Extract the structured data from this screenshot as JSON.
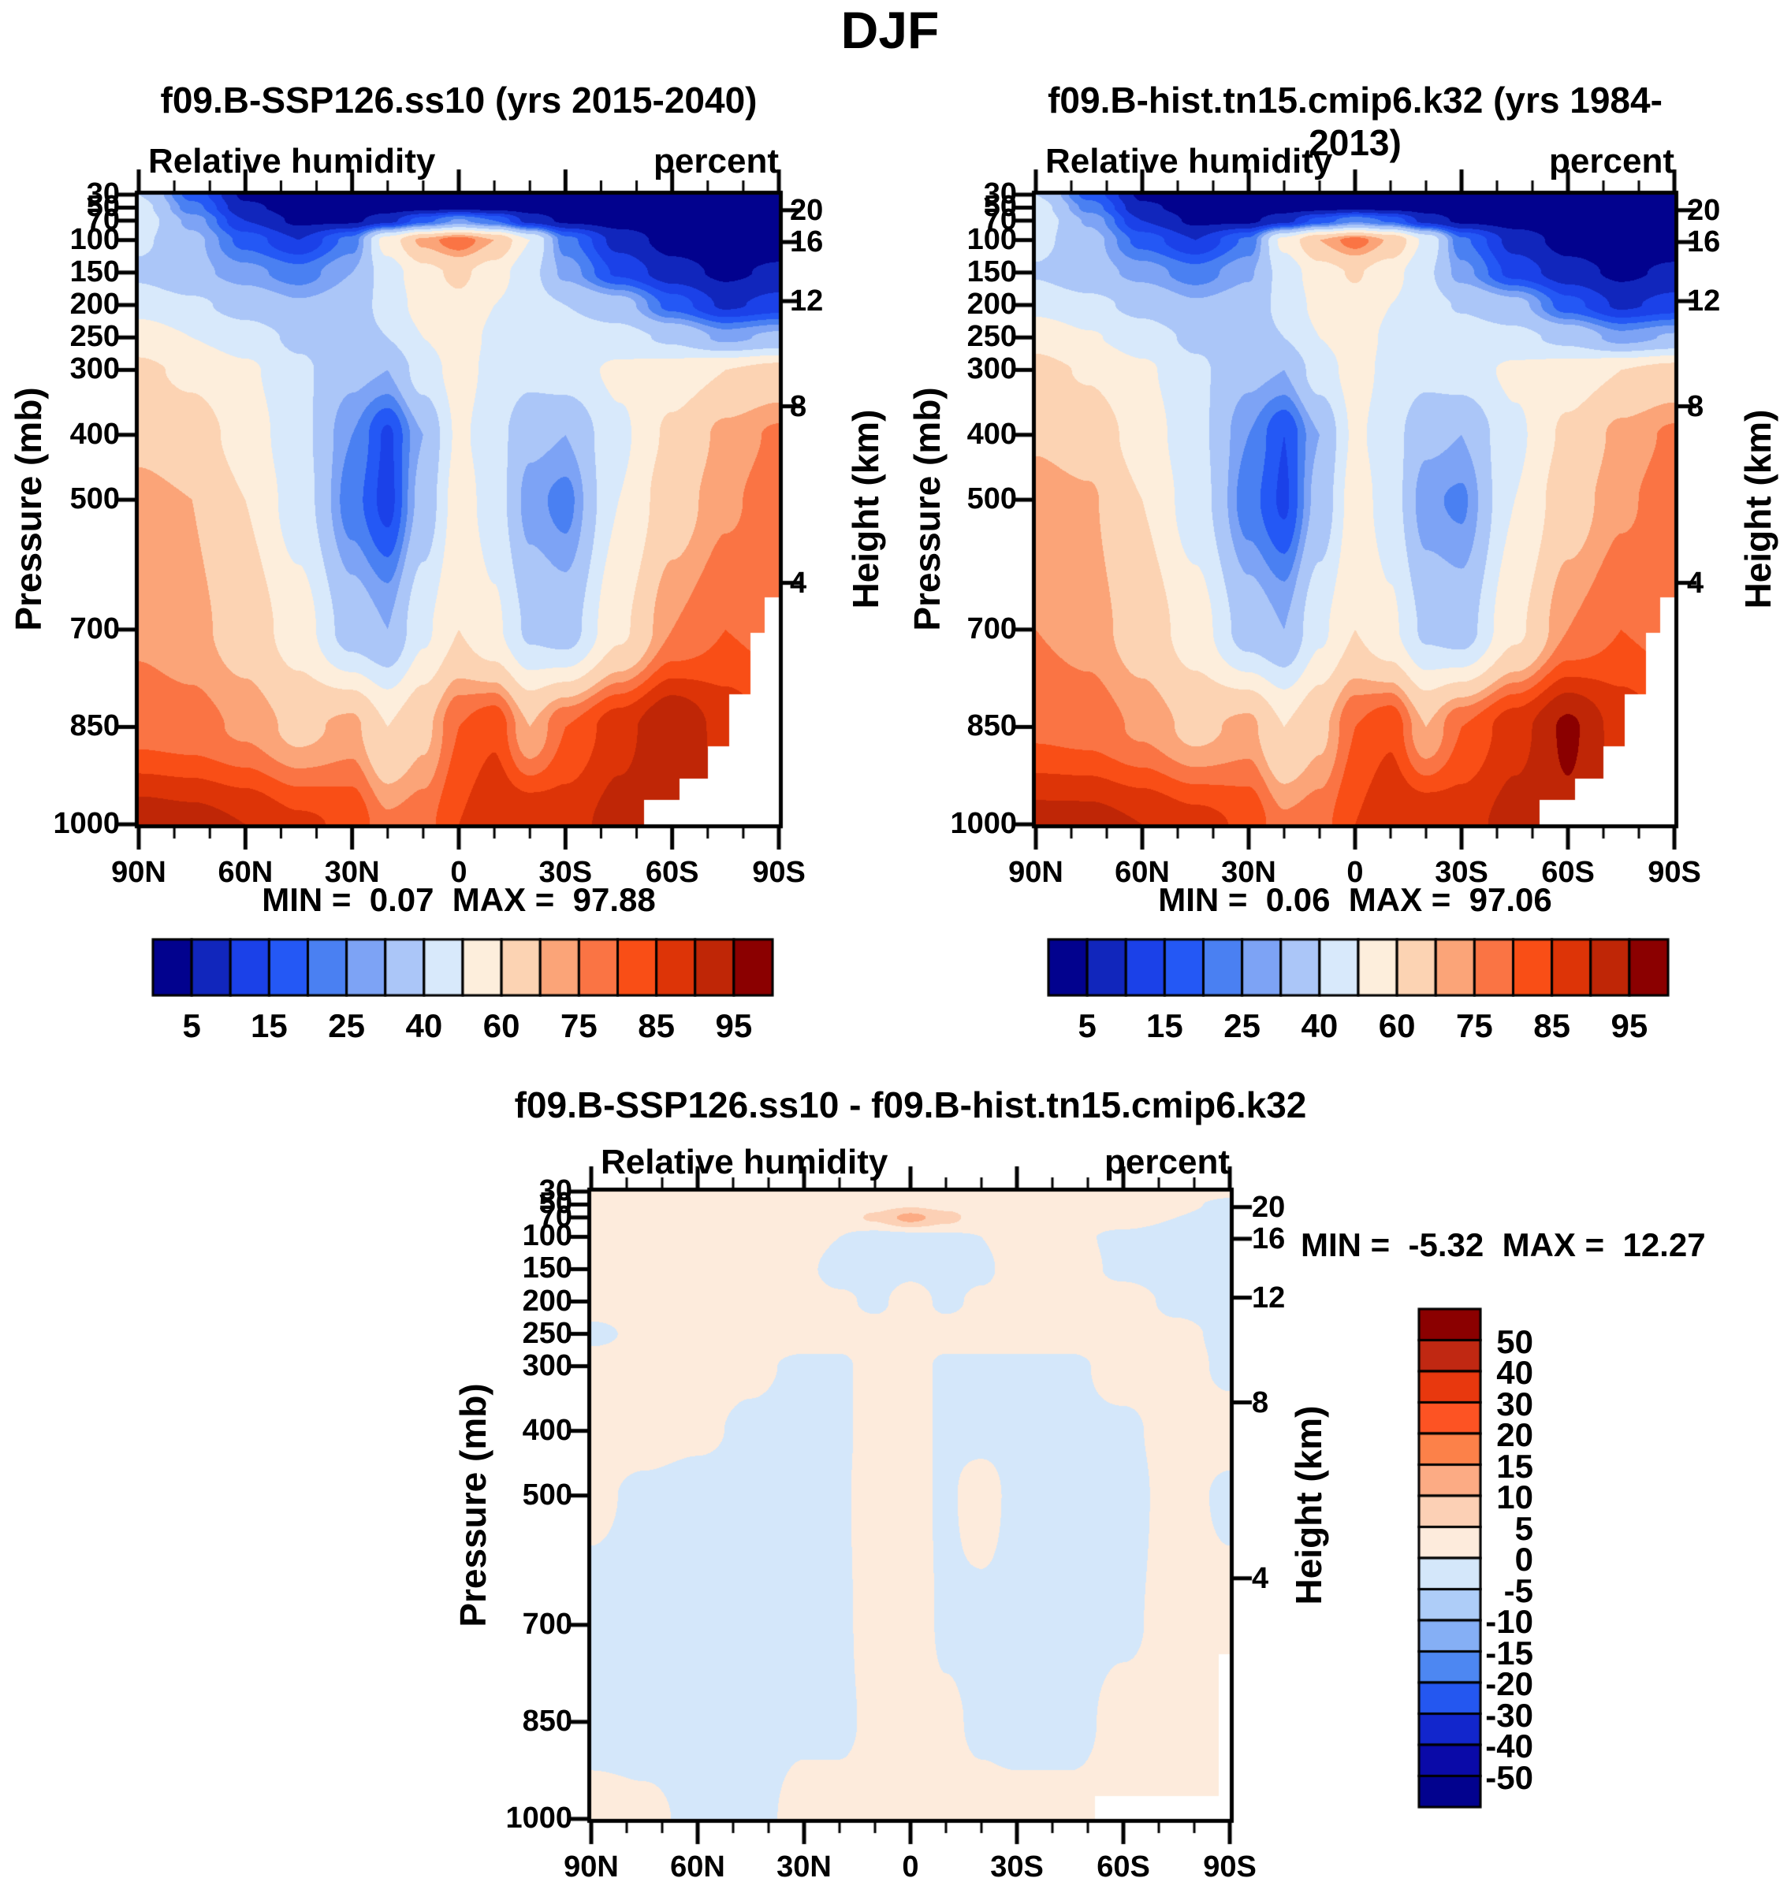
{
  "figure_title": "DJF",
  "chart_data": [
    {
      "id": "ssp126",
      "type": "heatmap",
      "title": "f09.B-SSP126.ss10 (yrs 2015-2040)",
      "field_label": "Relative humidity",
      "units_label": "percent",
      "stats_text": "MIN =  0.07  MAX =  97.88",
      "ylabel_left": "Pressure (mb)",
      "ylabel_right": "Height (km)",
      "pressure_ticks_mb": [
        30,
        50,
        70,
        100,
        150,
        200,
        250,
        300,
        400,
        500,
        700,
        850,
        1000
      ],
      "height_ticks": [
        {
          "label": "20",
          "p_mb": 54
        },
        {
          "label": "16",
          "p_mb": 103
        },
        {
          "label": "12",
          "p_mb": 194
        },
        {
          "label": "8",
          "p_mb": 356
        },
        {
          "label": "4",
          "p_mb": 628
        }
      ],
      "lat_major": [
        {
          "label": "90N",
          "deg": 90
        },
        {
          "label": "60N",
          "deg": 60
        },
        {
          "label": "30N",
          "deg": 30
        },
        {
          "label": "0",
          "deg": 0
        },
        {
          "label": "30S",
          "deg": -30
        },
        {
          "label": "60S",
          "deg": -60
        },
        {
          "label": "90S",
          "deg": -90
        }
      ],
      "lat_minor_step_deg": 10,
      "levels_percent": [
        5,
        10,
        15,
        20,
        25,
        30,
        40,
        50,
        60,
        70,
        75,
        80,
        85,
        90,
        95
      ],
      "colorbar_labels": [
        "5",
        "15",
        "25",
        "40",
        "60",
        "75",
        "85",
        "95"
      ],
      "colors": [
        "#02028e",
        "#1126bc",
        "#1b41e8",
        "#2458f5",
        "#4a80f2",
        "#7da3f5",
        "#abc6f8",
        "#d8e9fb",
        "#fdeedc",
        "#fcd3b3",
        "#fba478",
        "#fa7444",
        "#f94e16",
        "#dd3407",
        "#bf2606",
        "#8b0000"
      ],
      "lat_deg": [
        90,
        75,
        60,
        45,
        30,
        20,
        10,
        0,
        -10,
        -20,
        -30,
        -45,
        -60,
        -75,
        -90
      ],
      "pressure_mb": [
        30,
        50,
        70,
        100,
        150,
        200,
        250,
        300,
        400,
        500,
        700,
        850,
        1000
      ],
      "values": [
        [
          40,
          18,
          4,
          2,
          2,
          2,
          2,
          2,
          2,
          2,
          2,
          2,
          2,
          2,
          2
        ],
        [
          44,
          22,
          6,
          3,
          2,
          3,
          3,
          4,
          3,
          3,
          2,
          2,
          2,
          2,
          2
        ],
        [
          46,
          28,
          10,
          4,
          4,
          8,
          18,
          26,
          20,
          8,
          4,
          3,
          2,
          2,
          2
        ],
        [
          42,
          32,
          18,
          10,
          22,
          55,
          72,
          79,
          70,
          50,
          22,
          8,
          3,
          2,
          2
        ],
        [
          38,
          32,
          27,
          22,
          30,
          45,
          57,
          62,
          55,
          43,
          28,
          14,
          7,
          4,
          6
        ],
        [
          46,
          42,
          36,
          31,
          34,
          44,
          54,
          58,
          50,
          44,
          40,
          34,
          18,
          9,
          12
        ],
        [
          56,
          50,
          45,
          38,
          35,
          40,
          50,
          55,
          48,
          44,
          45,
          44,
          38,
          28,
          32
        ],
        [
          62,
          58,
          52,
          42,
          32,
          30,
          45,
          54,
          47,
          43,
          45,
          52,
          55,
          60,
          64
        ],
        [
          68,
          65,
          56,
          43,
          25,
          14,
          30,
          52,
          44,
          32,
          30,
          48,
          62,
          72,
          76
        ],
        [
          72,
          70,
          60,
          45,
          22,
          13,
          33,
          55,
          45,
          27,
          23,
          50,
          66,
          74,
          78
        ],
        [
          74,
          72,
          66,
          55,
          35,
          30,
          48,
          60,
          52,
          38,
          35,
          58,
          75,
          80,
          78
        ],
        [
          78,
          77,
          74,
          68,
          72,
          60,
          68,
          80,
          84,
          70,
          80,
          88,
          95,
          88,
          84
        ],
        [
          93,
          92,
          90,
          86,
          84,
          76,
          78,
          85,
          90,
          90,
          88,
          92,
          94,
          90,
          86
        ]
      ],
      "surface_mask": [
        {
          "lat_from": -52,
          "lat_to": -62,
          "p_mb": 962
        },
        {
          "lat_from": -62,
          "lat_to": -70,
          "p_mb": 930
        },
        {
          "lat_from": -70,
          "lat_to": -76,
          "p_mb": 880
        },
        {
          "lat_from": -76,
          "lat_to": -82,
          "p_mb": 800
        },
        {
          "lat_from": -82,
          "lat_to": -86,
          "p_mb": 705
        },
        {
          "lat_from": -86,
          "lat_to": -90,
          "p_mb": 650
        }
      ]
    },
    {
      "id": "hist",
      "type": "heatmap",
      "title": "f09.B-hist.tn15.cmip6.k32 (yrs 1984-2013)",
      "field_label": "Relative humidity",
      "units_label": "percent",
      "stats_text": "MIN =  0.06  MAX =  97.06",
      "ylabel_left": "Pressure (mb)",
      "ylabel_right": "Height (km)",
      "pressure_ticks_mb": [
        30,
        50,
        70,
        100,
        150,
        200,
        250,
        300,
        400,
        500,
        700,
        850,
        1000
      ],
      "height_ticks": [
        {
          "label": "20",
          "p_mb": 54
        },
        {
          "label": "16",
          "p_mb": 103
        },
        {
          "label": "12",
          "p_mb": 194
        },
        {
          "label": "8",
          "p_mb": 356
        },
        {
          "label": "4",
          "p_mb": 628
        }
      ],
      "lat_major": [
        {
          "label": "90N",
          "deg": 90
        },
        {
          "label": "60N",
          "deg": 60
        },
        {
          "label": "30N",
          "deg": 30
        },
        {
          "label": "0",
          "deg": 0
        },
        {
          "label": "30S",
          "deg": -30
        },
        {
          "label": "60S",
          "deg": -60
        },
        {
          "label": "90S",
          "deg": -90
        }
      ],
      "lat_minor_step_deg": 10,
      "levels_percent": [
        5,
        10,
        15,
        20,
        25,
        30,
        40,
        50,
        60,
        70,
        75,
        80,
        85,
        90,
        95
      ],
      "colorbar_labels": [
        "5",
        "15",
        "25",
        "40",
        "60",
        "75",
        "85",
        "95"
      ],
      "colors": [
        "#02028e",
        "#1126bc",
        "#1b41e8",
        "#2458f5",
        "#4a80f2",
        "#7da3f5",
        "#abc6f8",
        "#d8e9fb",
        "#fdeedc",
        "#fcd3b3",
        "#fba478",
        "#fa7444",
        "#f94e16",
        "#dd3407",
        "#bf2606",
        "#8b0000"
      ],
      "lat_deg": [
        90,
        75,
        60,
        45,
        30,
        20,
        10,
        0,
        -10,
        -20,
        -30,
        -45,
        -60,
        -75,
        -90
      ],
      "pressure_mb": [
        30,
        50,
        70,
        100,
        150,
        200,
        250,
        300,
        400,
        500,
        700,
        850,
        1000
      ],
      "values": [
        [
          40,
          18,
          4,
          2,
          2,
          2,
          2,
          2,
          2,
          2,
          2,
          2,
          2,
          2,
          2
        ],
        [
          45,
          23,
          6,
          3,
          2,
          3,
          3,
          4,
          3,
          3,
          2,
          2,
          2,
          2,
          2
        ],
        [
          47,
          29,
          10,
          4,
          4,
          8,
          17,
          24,
          19,
          8,
          4,
          3,
          2,
          2,
          2
        ],
        [
          43,
          33,
          18,
          10,
          21,
          53,
          70,
          78,
          69,
          48,
          21,
          8,
          3,
          2,
          2
        ],
        [
          39,
          33,
          28,
          22,
          29,
          44,
          56,
          61,
          54,
          42,
          27,
          13,
          7,
          4,
          6
        ],
        [
          47,
          43,
          37,
          31,
          34,
          43,
          53,
          57,
          50,
          44,
          39,
          33,
          17,
          9,
          12
        ],
        [
          57,
          51,
          45,
          38,
          35,
          40,
          50,
          55,
          48,
          44,
          45,
          43,
          37,
          27,
          31
        ],
        [
          63,
          59,
          52,
          42,
          32,
          30,
          45,
          54,
          47,
          43,
          45,
          52,
          55,
          60,
          64
        ],
        [
          69,
          66,
          56,
          43,
          25,
          15,
          30,
          52,
          44,
          32,
          30,
          48,
          62,
          72,
          76
        ],
        [
          73,
          71,
          60,
          45,
          22,
          14,
          33,
          55,
          45,
          26,
          24,
          50,
          66,
          74,
          78
        ],
        [
          75,
          73,
          66,
          55,
          35,
          30,
          48,
          60,
          52,
          38,
          35,
          58,
          75,
          80,
          78
        ],
        [
          79,
          78,
          74,
          68,
          72,
          60,
          68,
          80,
          84,
          70,
          80,
          88,
          96,
          88,
          84
        ],
        [
          92,
          92,
          90,
          87,
          84,
          76,
          78,
          85,
          90,
          90,
          88,
          92,
          94,
          90,
          86
        ]
      ],
      "surface_mask": [
        {
          "lat_from": -52,
          "lat_to": -62,
          "p_mb": 962
        },
        {
          "lat_from": -62,
          "lat_to": -70,
          "p_mb": 930
        },
        {
          "lat_from": -70,
          "lat_to": -76,
          "p_mb": 880
        },
        {
          "lat_from": -76,
          "lat_to": -82,
          "p_mb": 800
        },
        {
          "lat_from": -82,
          "lat_to": -86,
          "p_mb": 705
        },
        {
          "lat_from": -86,
          "lat_to": -90,
          "p_mb": 650
        }
      ]
    },
    {
      "id": "diff",
      "type": "heatmap",
      "title": "f09.B-SSP126.ss10 - f09.B-hist.tn15.cmip6.k32",
      "field_label": "Relative humidity",
      "units_label": "percent",
      "stats_text": "MIN =  -5.32  MAX =  12.27",
      "ylabel_left": "Pressure (mb)",
      "ylabel_right": "Height (km)",
      "pressure_ticks_mb": [
        30,
        50,
        70,
        100,
        150,
        200,
        250,
        300,
        400,
        500,
        700,
        850,
        1000
      ],
      "height_ticks": [
        {
          "label": "20",
          "p_mb": 54
        },
        {
          "label": "16",
          "p_mb": 103
        },
        {
          "label": "12",
          "p_mb": 194
        },
        {
          "label": "8",
          "p_mb": 356
        },
        {
          "label": "4",
          "p_mb": 628
        }
      ],
      "lat_major": [
        {
          "label": "90N",
          "deg": 90
        },
        {
          "label": "60N",
          "deg": 60
        },
        {
          "label": "30N",
          "deg": 30
        },
        {
          "label": "0",
          "deg": 0
        },
        {
          "label": "30S",
          "deg": -30
        },
        {
          "label": "60S",
          "deg": -60
        },
        {
          "label": "90S",
          "deg": -90
        }
      ],
      "lat_minor_step_deg": 10,
      "levels_percent": [
        -50,
        -40,
        -30,
        -20,
        -15,
        -10,
        -5,
        0,
        5,
        10,
        15,
        20,
        30,
        40,
        50
      ],
      "colorbar_labels": [
        "50",
        "40",
        "30",
        "20",
        "15",
        "10",
        "5",
        "0",
        "-5",
        "-10",
        "-15",
        "-20",
        "-30",
        "-40",
        "-50"
      ],
      "colors": [
        "#02028e",
        "#0a0aa8",
        "#1226cc",
        "#2457f0",
        "#4d87f2",
        "#85aff5",
        "#aecdf8",
        "#d4e7fa",
        "#fdebdc",
        "#fcd0b5",
        "#fcab84",
        "#fc8149",
        "#fd5323",
        "#e8380e",
        "#c02812",
        "#8b0000"
      ],
      "lat_deg": [
        90,
        75,
        60,
        45,
        30,
        20,
        10,
        0,
        -10,
        -20,
        -30,
        -45,
        -60,
        -75,
        -90
      ],
      "pressure_mb": [
        30,
        50,
        70,
        100,
        150,
        200,
        250,
        300,
        400,
        500,
        700,
        850,
        1000
      ],
      "values": [
        [
          2,
          2,
          2,
          2,
          2,
          2,
          2,
          2,
          2,
          2,
          2,
          2,
          2,
          2,
          1
        ],
        [
          2,
          2,
          2,
          2,
          2,
          2,
          3,
          4,
          3,
          2,
          2,
          2,
          2,
          1,
          -1
        ],
        [
          2,
          2,
          2,
          2,
          2,
          2,
          6,
          12,
          7,
          2,
          2,
          2,
          2,
          0,
          -2
        ],
        [
          2,
          2,
          2,
          2,
          2,
          0,
          -2,
          -2,
          -1,
          0,
          2,
          1,
          -1,
          -2,
          -3
        ],
        [
          2,
          2,
          2,
          2,
          1,
          -2,
          -2,
          -1,
          -2,
          -1,
          2,
          2,
          -1,
          -2,
          -2
        ],
        [
          2,
          2,
          2,
          2,
          2,
          1,
          -1,
          2,
          -1,
          1,
          2,
          2,
          2,
          -1,
          -2
        ],
        [
          -1,
          1,
          2,
          2,
          2,
          2,
          2,
          2,
          2,
          2,
          2,
          2,
          2,
          1,
          -1
        ],
        [
          2,
          2,
          2,
          1,
          -1,
          -1,
          2,
          2,
          -1,
          -1,
          -1,
          -1,
          2,
          2,
          -1
        ],
        [
          2,
          2,
          1,
          -1,
          -2,
          -1,
          2,
          2,
          -1,
          -2,
          -2,
          -1,
          -1,
          2,
          2
        ],
        [
          1,
          -1,
          -2,
          -2,
          -2,
          -1,
          3,
          2,
          -1,
          3,
          -2,
          -2,
          -2,
          2,
          -1
        ],
        [
          -2,
          -2,
          -2,
          -2,
          -2,
          -1,
          2,
          3,
          -1,
          -2,
          -2,
          -2,
          -1,
          2,
          2
        ],
        [
          -2,
          -2,
          -2,
          -2,
          -1,
          -1,
          1,
          2,
          1,
          -1,
          -2,
          -2,
          2,
          2,
          0
        ],
        [
          2,
          1,
          -1,
          -2,
          2,
          2,
          2,
          2,
          2,
          2,
          2,
          2,
          2,
          1,
          1
        ]
      ],
      "surface_mask": [
        {
          "lat_from": -52,
          "lat_to": -87,
          "p_mb": 965
        },
        {
          "lat_from": -87,
          "lat_to": -90,
          "p_mb": 745
        }
      ]
    }
  ]
}
